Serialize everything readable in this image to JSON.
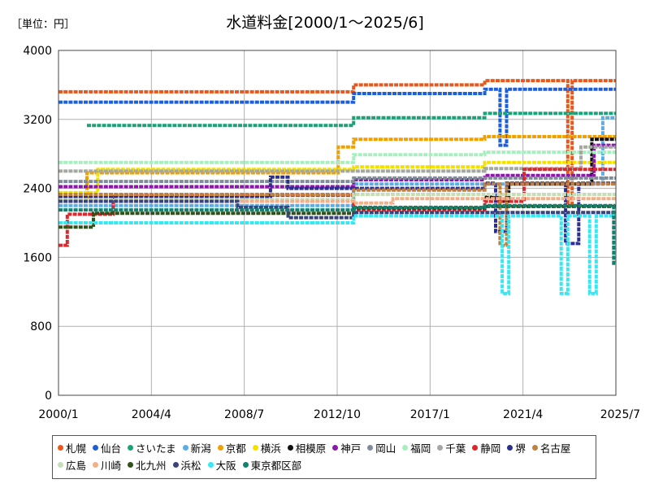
{
  "chart_data": {
    "type": "line",
    "title": "水道料金[2000/1～2025/6]",
    "unit_label": "［単位：円］",
    "xlabel": "",
    "ylabel": "",
    "xlim": [
      2000.0,
      2025.5
    ],
    "ylim": [
      0,
      4000
    ],
    "y_ticks": [
      0,
      800,
      1600,
      2400,
      3200,
      4000
    ],
    "y_tick_labels": [
      "0",
      "800",
      "1600",
      "2400",
      "3200",
      "4000"
    ],
    "x_ticks": [
      2000.0,
      2004.25,
      2008.5,
      2012.75,
      2017.0,
      2021.25,
      2025.5
    ],
    "x_tick_labels": [
      "2000/1",
      "2004/4",
      "2008/7",
      "2012/10",
      "2017/1",
      "2021/4",
      "2025/7"
    ],
    "grid": true,
    "legend_position": "bottom",
    "series": [
      {
        "name": "札幌",
        "color": "#e8581c",
        "points": [
          [
            2000,
            3520
          ],
          [
            2013.5,
            3520
          ],
          [
            2013.5,
            3600
          ],
          [
            2019.5,
            3600
          ],
          [
            2019.5,
            3650
          ],
          [
            2023.3,
            3650
          ],
          [
            2023.3,
            2200
          ],
          [
            2023.5,
            2200
          ],
          [
            2023.5,
            3650
          ],
          [
            2025.5,
            3650
          ]
        ]
      },
      {
        "name": "仙台",
        "color": "#1f5fd6",
        "points": [
          [
            2000,
            3400
          ],
          [
            2013.5,
            3400
          ],
          [
            2013.5,
            3500
          ],
          [
            2019.5,
            3500
          ],
          [
            2019.5,
            3550
          ],
          [
            2020.2,
            3550
          ],
          [
            2020.2,
            2900
          ],
          [
            2020.5,
            2900
          ],
          [
            2020.5,
            3550
          ],
          [
            2025.5,
            3550
          ]
        ]
      },
      {
        "name": "さいたま",
        "color": "#1aa37a",
        "points": [
          [
            2001.3,
            3130
          ],
          [
            2013.5,
            3130
          ],
          [
            2013.5,
            3220
          ],
          [
            2019.5,
            3220
          ],
          [
            2019.5,
            3270
          ],
          [
            2025.5,
            3270
          ]
        ]
      },
      {
        "name": "新潟",
        "color": "#5aaee8",
        "points": [
          [
            2000,
            2200
          ],
          [
            2013.5,
            2200
          ],
          [
            2013.5,
            2450
          ],
          [
            2024.9,
            2450
          ],
          [
            2024.9,
            3220
          ],
          [
            2025.5,
            3220
          ]
        ]
      },
      {
        "name": "京都",
        "color": "#f2a000",
        "points": [
          [
            2000,
            2300
          ],
          [
            2001.3,
            2300
          ],
          [
            2001.3,
            2580
          ],
          [
            2012.8,
            2580
          ],
          [
            2012.8,
            2880
          ],
          [
            2013.5,
            2880
          ],
          [
            2013.5,
            2970
          ],
          [
            2019.5,
            2970
          ],
          [
            2019.5,
            3000
          ],
          [
            2025.5,
            3000
          ]
        ]
      },
      {
        "name": "横浜",
        "color": "#f5e100",
        "points": [
          [
            2000,
            2350
          ],
          [
            2001.8,
            2350
          ],
          [
            2001.8,
            2620
          ],
          [
            2013.5,
            2620
          ],
          [
            2013.5,
            2650
          ],
          [
            2019.5,
            2650
          ],
          [
            2019.5,
            2700
          ],
          [
            2025.5,
            2700
          ]
        ]
      },
      {
        "name": "相模原",
        "color": "#111111",
        "points": [
          [
            2019.5,
            2300
          ],
          [
            2020.1,
            2300
          ],
          [
            2020.1,
            2250
          ],
          [
            2020.6,
            2250
          ],
          [
            2020.6,
            2450
          ],
          [
            2024.4,
            2450
          ],
          [
            2024.4,
            2970
          ],
          [
            2025.5,
            2970
          ]
        ]
      },
      {
        "name": "神戸",
        "color": "#8b18a8",
        "points": [
          [
            2000,
            2420
          ],
          [
            2013.5,
            2420
          ],
          [
            2013.5,
            2500
          ],
          [
            2019.5,
            2500
          ],
          [
            2019.5,
            2550
          ],
          [
            2024.5,
            2550
          ],
          [
            2024.5,
            2900
          ],
          [
            2025.5,
            2900
          ]
        ]
      },
      {
        "name": "岡山",
        "color": "#7f8c99",
        "points": [
          [
            2000,
            2480
          ],
          [
            2013.5,
            2480
          ],
          [
            2013.5,
            2520
          ],
          [
            2025.5,
            2520
          ]
        ]
      },
      {
        "name": "福岡",
        "color": "#a8efc0",
        "points": [
          [
            2000,
            2700
          ],
          [
            2013.5,
            2700
          ],
          [
            2013.5,
            2790
          ],
          [
            2019.5,
            2790
          ],
          [
            2019.5,
            2820
          ],
          [
            2025.5,
            2820
          ]
        ]
      },
      {
        "name": "千葉",
        "color": "#a3a8a0",
        "points": [
          [
            2000,
            2600
          ],
          [
            2013.5,
            2600
          ],
          [
            2013.5,
            2600
          ],
          [
            2019.5,
            2600
          ],
          [
            2019.5,
            2630
          ],
          [
            2023.9,
            2630
          ],
          [
            2023.9,
            2880
          ],
          [
            2025.5,
            2880
          ]
        ]
      },
      {
        "name": "静岡",
        "color": "#d9282e",
        "points": [
          [
            2000,
            1740
          ],
          [
            2000.4,
            1740
          ],
          [
            2000.4,
            2100
          ],
          [
            2002.5,
            2100
          ],
          [
            2002.5,
            2320
          ],
          [
            2013.5,
            2320
          ],
          [
            2013.5,
            2150
          ],
          [
            2019.5,
            2150
          ],
          [
            2019.5,
            2250
          ],
          [
            2021.3,
            2250
          ],
          [
            2021.3,
            2620
          ],
          [
            2025.5,
            2620
          ]
        ]
      },
      {
        "name": "堺",
        "color": "#2b2f8f",
        "points": [
          [
            2000,
            2300
          ],
          [
            2009.7,
            2300
          ],
          [
            2009.7,
            2530
          ],
          [
            2010.5,
            2530
          ],
          [
            2010.5,
            2400
          ],
          [
            2019.5,
            2400
          ],
          [
            2019.5,
            2460
          ],
          [
            2020.0,
            2460
          ],
          [
            2020.0,
            1900
          ],
          [
            2020.5,
            1900
          ],
          [
            2020.5,
            2460
          ],
          [
            2023.2,
            2460
          ],
          [
            2023.2,
            1760
          ],
          [
            2023.8,
            1760
          ],
          [
            2023.8,
            2460
          ],
          [
            2025.5,
            2460
          ]
        ]
      },
      {
        "name": "名古屋",
        "color": "#c08040",
        "points": [
          [
            2000,
            2330
          ],
          [
            2013.5,
            2330
          ],
          [
            2013.5,
            2380
          ],
          [
            2019.5,
            2380
          ],
          [
            2019.5,
            2450
          ],
          [
            2020.2,
            2450
          ],
          [
            2020.2,
            1740
          ],
          [
            2020.5,
            1740
          ],
          [
            2020.5,
            2450
          ],
          [
            2025.5,
            2450
          ]
        ]
      },
      {
        "name": "広島",
        "color": "#c6ddb8",
        "points": [
          [
            2000,
            2270
          ],
          [
            2013.5,
            2270
          ],
          [
            2013.5,
            2330
          ],
          [
            2025.5,
            2330
          ]
        ]
      },
      {
        "name": "川崎",
        "color": "#f2b08a",
        "points": [
          [
            2000,
            2250
          ],
          [
            2013.5,
            2250
          ],
          [
            2013.5,
            2230
          ],
          [
            2015.3,
            2230
          ],
          [
            2015.3,
            2280
          ],
          [
            2025.5,
            2280
          ]
        ]
      },
      {
        "name": "北九州",
        "color": "#2e5218",
        "points": [
          [
            2000,
            1950
          ],
          [
            2001.6,
            1950
          ],
          [
            2001.6,
            2110
          ],
          [
            2013.5,
            2110
          ],
          [
            2013.5,
            2170
          ],
          [
            2019.5,
            2170
          ],
          [
            2019.5,
            2190
          ],
          [
            2025.5,
            2190
          ]
        ]
      },
      {
        "name": "浜松",
        "color": "#39457a",
        "points": [
          [
            2000,
            2250
          ],
          [
            2008.2,
            2250
          ],
          [
            2008.2,
            2180
          ],
          [
            2010.5,
            2180
          ],
          [
            2010.5,
            2060
          ],
          [
            2013.5,
            2060
          ],
          [
            2013.5,
            2120
          ],
          [
            2025.5,
            2120
          ]
        ]
      },
      {
        "name": "大阪",
        "color": "#38e8f0",
        "points": [
          [
            2000,
            2000
          ],
          [
            2013.5,
            2000
          ],
          [
            2013.5,
            2080
          ],
          [
            2020.3,
            2080
          ],
          [
            2020.3,
            1180
          ],
          [
            2020.6,
            1180
          ],
          [
            2020.6,
            2080
          ],
          [
            2023.0,
            2080
          ],
          [
            2023.0,
            1180
          ],
          [
            2023.3,
            1180
          ],
          [
            2023.3,
            2080
          ],
          [
            2024.3,
            2080
          ],
          [
            2024.3,
            1180
          ],
          [
            2024.6,
            1180
          ],
          [
            2024.6,
            2080
          ],
          [
            2025.5,
            2080
          ]
        ]
      },
      {
        "name": "東京都区部",
        "color": "#138070",
        "points": [
          [
            2000,
            2150
          ],
          [
            2013.5,
            2150
          ],
          [
            2013.5,
            2180
          ],
          [
            2019.5,
            2180
          ],
          [
            2019.5,
            2200
          ],
          [
            2025.4,
            2200
          ],
          [
            2025.4,
            1530
          ],
          [
            2025.5,
            1530
          ]
        ]
      }
    ]
  }
}
